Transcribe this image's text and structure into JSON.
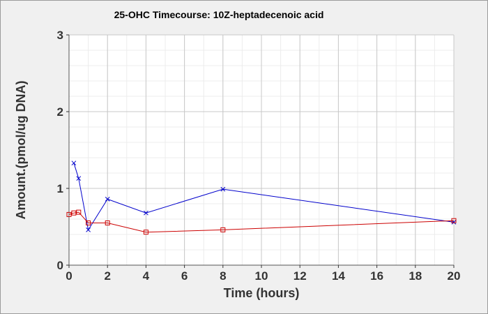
{
  "chart_data": {
    "type": "line",
    "title": "25-OHC Timecourse: 10Z-heptadecenoic acid",
    "xlabel": "Time (hours)",
    "ylabel": "Amount.(pmol/ug DNA)",
    "xlim": [
      0,
      20
    ],
    "ylim": [
      0,
      3
    ],
    "x_ticks": [
      0,
      2,
      4,
      6,
      8,
      10,
      12,
      14,
      16,
      18,
      20
    ],
    "y_ticks": [
      0,
      1,
      2,
      3
    ],
    "grid": true,
    "series": [
      {
        "color": "#0000cc",
        "marker": "x",
        "points": [
          [
            0.25,
            1.33
          ],
          [
            0.5,
            1.13
          ],
          [
            1,
            0.46
          ],
          [
            2,
            0.86
          ],
          [
            4,
            0.68
          ],
          [
            8,
            0.99
          ],
          [
            20,
            0.56
          ]
        ]
      },
      {
        "color": "#cc0000",
        "marker": "square",
        "points": [
          [
            0,
            0.66
          ],
          [
            0.25,
            0.68
          ],
          [
            0.5,
            0.69
          ],
          [
            1,
            0.55
          ],
          [
            2,
            0.55
          ],
          [
            4,
            0.43
          ],
          [
            8,
            0.46
          ],
          [
            20,
            0.58
          ]
        ]
      }
    ]
  }
}
